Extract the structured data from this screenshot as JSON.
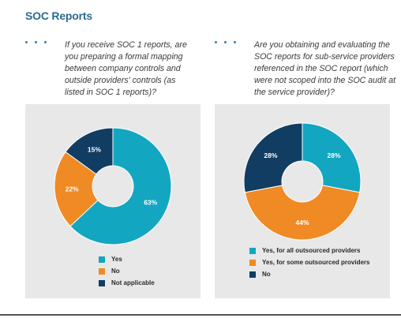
{
  "page": {
    "title": "SOC Reports"
  },
  "colors": {
    "teal": "#13a6c1",
    "orange": "#f08a24",
    "navy": "#123d63"
  },
  "questions": {
    "left": [
      "If you receive SOC 1 reports, are",
      "you preparing a formal mapping",
      "between company controls and",
      "outside providers' controls (as",
      "listed in SOC 1 reports)?"
    ],
    "right": [
      "Are you obtaining and evaluating the",
      "SOC reports for sub-service providers",
      "referenced in the SOC report (which",
      "were not scoped into the SOC audit at",
      "the service provider)?"
    ]
  },
  "chart_data": [
    {
      "type": "pie",
      "categories": [
        "Yes",
        "No",
        "Not applicable"
      ],
      "values": [
        63,
        22,
        15
      ],
      "data_labels": [
        "63%",
        "22%",
        "15%"
      ],
      "colors": [
        "#13a6c1",
        "#f08a24",
        "#123d63"
      ],
      "legend_position": "bottom"
    },
    {
      "type": "pie",
      "categories": [
        "Yes, for all outsourced providers",
        "Yes, for some outsourced providers",
        "No"
      ],
      "values": [
        28,
        44,
        28
      ],
      "data_labels": [
        "28%",
        "44%",
        "28%"
      ],
      "colors": [
        "#13a6c1",
        "#f08a24",
        "#123d63"
      ],
      "legend_position": "bottom"
    }
  ]
}
